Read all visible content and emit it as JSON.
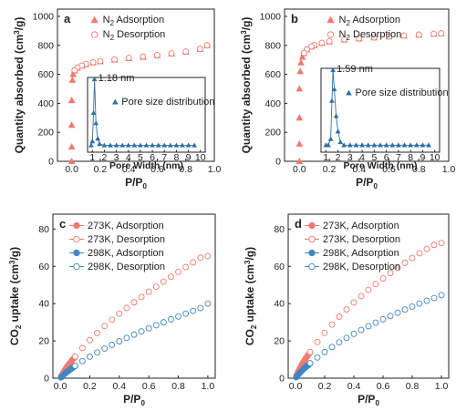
{
  "colors": {
    "adsorption": "#f07a6e",
    "co2_298": "#3f86bf",
    "pore": "#2f6fa7",
    "axis": "#222222"
  },
  "panels": [
    {
      "letter": "a",
      "xlabel": "P/P",
      "xlabel_sub": "0",
      "ylabel": "Quantity absorbed (cm",
      "ylabel_sup": "3",
      "ylabel_tail": "/g)",
      "xlim": [
        -0.1,
        1.0
      ],
      "ylim": [
        0,
        1050
      ],
      "xticks": [
        "0.0",
        "0.2",
        "0.4",
        "0.6",
        "0.8",
        "1.0"
      ],
      "yticks": [
        "0",
        "200",
        "400",
        "600",
        "800",
        "1000"
      ],
      "legend": [
        {
          "pre": "N",
          "sub": "2",
          "post": " Adsorption"
        },
        {
          "pre": "N",
          "sub": "2",
          "post": " Desorption"
        }
      ],
      "inset": {
        "label": "Pore size distribution",
        "peak_label": "1.18 nm",
        "xlabel": "Pore Width (nm)",
        "xticks": [
          "1",
          "2",
          "3",
          "4",
          "5",
          "6",
          "7",
          "8",
          "9",
          "10"
        ]
      }
    },
    {
      "letter": "b",
      "xlabel": "P/P",
      "xlabel_sub": "0",
      "ylabel": "Quantity absorbed (cm",
      "ylabel_sup": "3",
      "ylabel_tail": "/g)",
      "xlim": [
        -0.1,
        1.0
      ],
      "ylim": [
        0,
        1050
      ],
      "xticks": [
        "0.0",
        "0.2",
        "0.4",
        "0.6",
        "0.8",
        "1.0"
      ],
      "yticks": [
        "0",
        "200",
        "400",
        "600",
        "800",
        "1000"
      ],
      "legend": [
        {
          "pre": "N",
          "sub": "2",
          "post": " Adsorption"
        },
        {
          "pre": "N",
          "sub": "2",
          "post": " Desorption"
        }
      ],
      "inset": {
        "label": "Pore size distribution",
        "peak_label": "1.59 nm",
        "xlabel": "Pore Width (nm)",
        "xticks": [
          "1",
          "2",
          "3",
          "4",
          "5",
          "6",
          "7",
          "8",
          "9",
          "10"
        ]
      }
    },
    {
      "letter": "c",
      "xlabel": "P/P",
      "xlabel_sub": "0",
      "ylabel": "CO",
      "ylabel_sub": "2",
      "ylabel_tail": " uptake (cm",
      "ylabel_sup": "3",
      "ylabel_tail2": "/g)",
      "xlim": [
        -0.05,
        1.05
      ],
      "ylim": [
        0,
        88
      ],
      "xticks": [
        "0.0",
        "0.2",
        "0.4",
        "0.6",
        "0.8",
        "1.0"
      ],
      "yticks": [
        "0",
        "20",
        "40",
        "60",
        "80"
      ],
      "legend": [
        "273K, Adsorption",
        "273K, Desorption",
        "298K, Adsorption",
        "298K, Desorption"
      ]
    },
    {
      "letter": "d",
      "xlabel": "P/P",
      "xlabel_sub": "0",
      "ylabel": "CO",
      "ylabel_sub": "2",
      "ylabel_tail": " uptake (cm",
      "ylabel_sup": "3",
      "ylabel_tail2": "/g)",
      "xlim": [
        -0.05,
        1.05
      ],
      "ylim": [
        0,
        88
      ],
      "xticks": [
        "0.0",
        "0.2",
        "0.4",
        "0.6",
        "0.8",
        "1.0"
      ],
      "yticks": [
        "0",
        "20",
        "40",
        "60",
        "80"
      ],
      "legend": [
        "273K, Adsorption",
        "273K, Desorption",
        "298K, Adsorption",
        "298K, Desorption"
      ]
    }
  ],
  "chart_data": [
    {
      "panel": "a",
      "type": "scatter",
      "xlabel": "P/P0",
      "ylabel": "Quantity absorbed (cm3/g)",
      "xlim": [
        -0.1,
        1.0
      ],
      "ylim": [
        0,
        1050
      ],
      "series": [
        {
          "name": "N2 Adsorption",
          "marker": "filled-triangle",
          "x": [
            0.0,
            0.0,
            0.0,
            0.0,
            0.005,
            0.01,
            0.02,
            0.04,
            0.07,
            0.1,
            0.15,
            0.2,
            0.3,
            0.4,
            0.5,
            0.6,
            0.7,
            0.8,
            0.9,
            0.95
          ],
          "y": [
            0,
            100,
            250,
            420,
            560,
            600,
            625,
            645,
            658,
            668,
            680,
            688,
            700,
            710,
            720,
            730,
            742,
            755,
            775,
            800
          ]
        },
        {
          "name": "N2 Desorption",
          "marker": "open-circle",
          "x": [
            0.95,
            0.9,
            0.8,
            0.7,
            0.6,
            0.5,
            0.4,
            0.3,
            0.2,
            0.15,
            0.1,
            0.07,
            0.04,
            0.02
          ],
          "y": [
            800,
            775,
            757,
            744,
            733,
            723,
            713,
            703,
            691,
            683,
            671,
            660,
            647,
            628
          ]
        }
      ],
      "inset": {
        "name": "Pore size distribution",
        "xlabel": "Pore Width (nm)",
        "x": [
          0.9,
          1.0,
          1.1,
          1.18,
          1.3,
          1.45,
          1.6,
          2.0,
          2.5,
          3,
          3.5,
          4,
          4.5,
          5,
          5.5,
          6,
          6.5,
          7,
          7.5,
          8,
          8.5,
          9,
          9.5
        ],
        "y": [
          0.02,
          0.08,
          0.5,
          1.0,
          0.35,
          0.12,
          0.04,
          0.02,
          0.02,
          0.02,
          0.02,
          0.02,
          0.02,
          0.02,
          0.02,
          0.02,
          0.02,
          0.02,
          0.02,
          0.02,
          0.02,
          0.02,
          0.02
        ]
      }
    },
    {
      "panel": "b",
      "type": "scatter",
      "xlabel": "P/P0",
      "ylabel": "Quantity absorbed (cm3/g)",
      "xlim": [
        -0.1,
        1.0
      ],
      "ylim": [
        0,
        1050
      ],
      "series": [
        {
          "name": "N2 Adsorption",
          "marker": "filled-triangle",
          "x": [
            0.0,
            0.0,
            0.0,
            0.0,
            0.005,
            0.01,
            0.02,
            0.03,
            0.05,
            0.08,
            0.1,
            0.15,
            0.2,
            0.3,
            0.4,
            0.5,
            0.6,
            0.7,
            0.8,
            0.9,
            0.95
          ],
          "y": [
            0,
            120,
            300,
            500,
            620,
            680,
            720,
            745,
            770,
            790,
            800,
            815,
            825,
            838,
            846,
            853,
            860,
            866,
            872,
            878,
            882
          ]
        },
        {
          "name": "N2 Desorption",
          "marker": "open-circle",
          "x": [
            0.95,
            0.9,
            0.8,
            0.7,
            0.6,
            0.5,
            0.4,
            0.3,
            0.2,
            0.15,
            0.1,
            0.08,
            0.05,
            0.03
          ],
          "y": [
            882,
            879,
            874,
            868,
            862,
            855,
            848,
            840,
            827,
            817,
            802,
            792,
            772,
            747
          ]
        }
      ],
      "inset": {
        "name": "Pore size distribution",
        "xlabel": "Pore Width (nm)",
        "x": [
          1.0,
          1.2,
          1.4,
          1.5,
          1.59,
          1.7,
          1.85,
          2.0,
          2.2,
          2.5,
          3,
          3.5,
          4,
          4.5,
          5,
          5.5,
          6,
          6.5,
          7,
          7.5,
          8,
          8.5,
          9,
          9.5
        ],
        "y": [
          0.02,
          0.02,
          0.1,
          0.6,
          1.0,
          0.75,
          0.4,
          0.2,
          0.06,
          0.02,
          0.02,
          0.02,
          0.02,
          0.02,
          0.02,
          0.02,
          0.02,
          0.02,
          0.02,
          0.02,
          0.02,
          0.02,
          0.02,
          0.02
        ]
      }
    },
    {
      "panel": "c",
      "type": "scatter",
      "xlabel": "P/P0",
      "ylabel": "CO2 uptake (cm3/g)",
      "xlim": [
        -0.05,
        1.05
      ],
      "ylim": [
        0,
        88
      ],
      "series": [
        {
          "name": "273K, Adsorption",
          "marker": "filled-circle",
          "x": [
            0.005,
            0.01,
            0.02,
            0.03,
            0.04,
            0.05,
            0.06,
            0.07,
            0.08,
            0.09,
            0.1
          ],
          "y": [
            0.8,
            1.6,
            3.0,
            4.3,
            5.5,
            6.6,
            7.6,
            8.6,
            9.6,
            10.5,
            11.4
          ]
        },
        {
          "name": "273K, Desorption",
          "marker": "open-circle",
          "x": [
            0.1,
            0.15,
            0.2,
            0.25,
            0.3,
            0.35,
            0.4,
            0.45,
            0.5,
            0.55,
            0.6,
            0.65,
            0.7,
            0.75,
            0.8,
            0.85,
            0.9,
            0.95,
            1.0
          ],
          "y": [
            11.6,
            16.2,
            20.4,
            24.3,
            28.0,
            31.4,
            34.6,
            37.7,
            40.7,
            43.6,
            46.4,
            49.1,
            51.8,
            54.4,
            57.0,
            59.6,
            62.1,
            64.6,
            65.5
          ]
        },
        {
          "name": "298K, Adsorption",
          "marker": "filled-circle",
          "x": [
            0.005,
            0.01,
            0.02,
            0.03,
            0.04,
            0.05,
            0.06,
            0.07,
            0.08,
            0.09,
            0.1
          ],
          "y": [
            0.4,
            0.8,
            1.6,
            2.3,
            3.0,
            3.6,
            4.2,
            4.8,
            5.4,
            5.9,
            6.5
          ]
        },
        {
          "name": "298K, Desorption",
          "marker": "open-circle",
          "x": [
            0.1,
            0.15,
            0.2,
            0.25,
            0.3,
            0.35,
            0.4,
            0.45,
            0.5,
            0.55,
            0.6,
            0.65,
            0.7,
            0.75,
            0.8,
            0.85,
            0.9,
            0.95,
            1.0
          ],
          "y": [
            6.6,
            9.2,
            11.6,
            13.8,
            15.9,
            17.9,
            19.8,
            21.6,
            23.4,
            25.1,
            26.8,
            28.4,
            30.0,
            31.6,
            33.1,
            34.6,
            36.1,
            37.6,
            40.0
          ]
        }
      ]
    },
    {
      "panel": "d",
      "type": "scatter",
      "xlabel": "P/P0",
      "ylabel": "CO2 uptake (cm3/g)",
      "xlim": [
        -0.05,
        1.05
      ],
      "ylim": [
        0,
        88
      ],
      "series": [
        {
          "name": "273K, Adsorption",
          "marker": "filled-circle",
          "x": [
            0.005,
            0.01,
            0.02,
            0.03,
            0.04,
            0.05,
            0.06,
            0.07,
            0.08,
            0.09,
            0.1
          ],
          "y": [
            1.0,
            2.0,
            3.8,
            5.4,
            6.9,
            8.2,
            9.4,
            10.6,
            11.7,
            12.8,
            13.8
          ]
        },
        {
          "name": "273K, Desorption",
          "marker": "open-circle",
          "x": [
            0.1,
            0.15,
            0.2,
            0.25,
            0.3,
            0.35,
            0.4,
            0.45,
            0.5,
            0.55,
            0.6,
            0.65,
            0.7,
            0.75,
            0.8,
            0.85,
            0.9,
            0.95,
            1.0
          ],
          "y": [
            14.0,
            19.4,
            24.3,
            28.8,
            33.0,
            36.9,
            40.6,
            44.1,
            47.4,
            50.5,
            53.5,
            56.4,
            59.2,
            61.9,
            64.5,
            67.0,
            69.4,
            71.5,
            72.5
          ]
        },
        {
          "name": "298K, Adsorption",
          "marker": "filled-circle",
          "x": [
            0.005,
            0.01,
            0.02,
            0.03,
            0.04,
            0.05,
            0.06,
            0.07,
            0.08,
            0.09,
            0.1
          ],
          "y": [
            0.5,
            1.0,
            2.0,
            2.9,
            3.7,
            4.5,
            5.2,
            5.9,
            6.6,
            7.2,
            7.9
          ]
        },
        {
          "name": "298K, Desorption",
          "marker": "open-circle",
          "x": [
            0.1,
            0.15,
            0.2,
            0.25,
            0.3,
            0.35,
            0.4,
            0.45,
            0.5,
            0.55,
            0.6,
            0.65,
            0.7,
            0.75,
            0.8,
            0.85,
            0.9,
            0.95,
            1.0
          ],
          "y": [
            8.0,
            11.1,
            14.0,
            16.7,
            19.2,
            21.6,
            23.8,
            25.9,
            27.9,
            29.8,
            31.6,
            33.4,
            35.1,
            36.8,
            38.4,
            40.0,
            41.5,
            43.0,
            44.5
          ]
        }
      ]
    }
  ]
}
